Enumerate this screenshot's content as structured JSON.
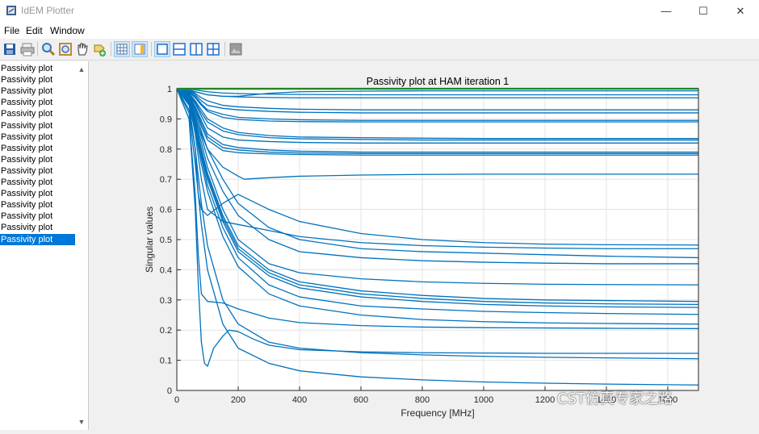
{
  "window": {
    "title": "IdEM Plotter",
    "minimize": "—",
    "maximize": "☐",
    "close": "✕"
  },
  "menu": [
    "File",
    "Edit",
    "Window"
  ],
  "toolbar": {
    "buttons": [
      "save-icon",
      "print-icon",
      "zoom-icon",
      "zoom-fit-icon",
      "pan-hand-icon",
      "data-cursor-icon",
      "grid-icon",
      "legend-icon",
      "layout-single-icon",
      "layout-rows-icon",
      "layout-cols-icon",
      "layout-quad-icon",
      "export-image-icon"
    ]
  },
  "list": {
    "items": [
      "Passivity plot",
      "Passivity plot",
      "Passivity plot",
      "Passivity plot",
      "Passivity plot",
      "Passivity plot",
      "Passivity plot",
      "Passivity plot",
      "Passivity plot",
      "Passivity plot",
      "Passivity plot",
      "Passivity plot",
      "Passivity plot",
      "Passivity plot",
      "Passivity plot",
      "Passivity plot"
    ],
    "selected_index": 15
  },
  "chart_data": {
    "type": "line",
    "title": "Passivity plot at HAM iteration 1",
    "xlabel": "Frequency [MHz]",
    "ylabel": "Singular values",
    "xlim": [
      0,
      1700
    ],
    "ylim": [
      0,
      1
    ],
    "xticks": [
      "0",
      "200",
      "400",
      "600",
      "800",
      "1000",
      "1200",
      "1400",
      "1600"
    ],
    "yticks": [
      "0",
      "0.1",
      "0.2",
      "0.3",
      "0.4",
      "0.5",
      "0.6",
      "0.7",
      "0.8",
      "0.9",
      "1"
    ],
    "grid": true,
    "series_color": "#0072bd",
    "threshold_color": "#1fe01f",
    "threshold": {
      "x": [
        0,
        1700
      ],
      "y": [
        1,
        1
      ]
    },
    "series": [
      {
        "x": [
          0,
          40,
          60,
          80,
          100,
          150,
          200,
          300,
          400,
          600,
          800,
          1000,
          1200,
          1400,
          1700
        ],
        "y": [
          1,
          0.999,
          0.996,
          0.993,
          0.99,
          0.986,
          0.984,
          0.982,
          0.981,
          0.98,
          0.98,
          0.98,
          0.98,
          0.98,
          0.98
        ]
      },
      {
        "x": [
          0,
          40,
          60,
          80,
          100,
          150,
          200,
          300,
          400,
          600,
          800,
          1000,
          1200,
          1400,
          1700
        ],
        "y": [
          1,
          0.997,
          0.99,
          0.985,
          0.98,
          0.975,
          0.973,
          0.971,
          0.97,
          0.97,
          0.97,
          0.97,
          0.97,
          0.97,
          0.97
        ]
      },
      {
        "x": [
          0,
          40,
          60,
          80,
          100,
          150,
          200,
          300,
          400,
          600,
          800,
          1000,
          1200,
          1400,
          1700
        ],
        "y": [
          1,
          0.995,
          0.985,
          0.97,
          0.96,
          0.945,
          0.94,
          0.935,
          0.932,
          0.93,
          0.93,
          0.93,
          0.93,
          0.93,
          0.93
        ]
      },
      {
        "x": [
          0,
          40,
          60,
          80,
          100,
          150,
          200,
          300,
          400,
          600,
          800,
          1000,
          1200,
          1400,
          1700
        ],
        "y": [
          1,
          0.993,
          0.98,
          0.96,
          0.945,
          0.935,
          0.93,
          0.925,
          0.922,
          0.92,
          0.92,
          0.92,
          0.92,
          0.92,
          0.92
        ]
      },
      {
        "x": [
          0,
          40,
          60,
          80,
          100,
          150,
          200,
          300,
          400,
          600,
          800,
          1000,
          1200,
          1400,
          1700
        ],
        "y": [
          1,
          0.99,
          0.975,
          0.95,
          0.93,
          0.915,
          0.905,
          0.9,
          0.897,
          0.895,
          0.895,
          0.895,
          0.895,
          0.895,
          0.895
        ]
      },
      {
        "x": [
          0,
          40,
          60,
          80,
          100,
          150,
          200,
          300,
          400,
          600,
          800,
          1000,
          1200,
          1400,
          1700
        ],
        "y": [
          1,
          0.988,
          0.97,
          0.945,
          0.925,
          0.905,
          0.898,
          0.893,
          0.891,
          0.89,
          0.89,
          0.89,
          0.89,
          0.89,
          0.89
        ]
      },
      {
        "x": [
          0,
          40,
          60,
          80,
          100,
          150,
          200,
          300,
          400,
          600,
          800,
          1000,
          1200,
          1400,
          1700
        ],
        "y": [
          1,
          0.985,
          0.96,
          0.93,
          0.9,
          0.87,
          0.855,
          0.845,
          0.84,
          0.838,
          0.836,
          0.835,
          0.835,
          0.835,
          0.835
        ]
      },
      {
        "x": [
          0,
          40,
          60,
          80,
          100,
          150,
          200,
          300,
          400,
          600,
          800,
          1000,
          1200,
          1400,
          1700
        ],
        "y": [
          1,
          0.983,
          0.955,
          0.92,
          0.89,
          0.86,
          0.848,
          0.838,
          0.834,
          0.832,
          0.83,
          0.83,
          0.83,
          0.83,
          0.83
        ]
      },
      {
        "x": [
          0,
          40,
          60,
          80,
          100,
          150,
          200,
          300,
          400,
          600,
          800,
          1000,
          1200,
          1400,
          1700
        ],
        "y": [
          1,
          0.98,
          0.95,
          0.91,
          0.87,
          0.84,
          0.83,
          0.825,
          0.822,
          0.82,
          0.82,
          0.82,
          0.82,
          0.82,
          0.82
        ]
      },
      {
        "x": [
          0,
          40,
          60,
          80,
          100,
          150,
          200,
          300,
          400,
          600,
          800,
          1000,
          1200,
          1400,
          1700
        ],
        "y": [
          1,
          0.978,
          0.94,
          0.895,
          0.85,
          0.815,
          0.805,
          0.797,
          0.793,
          0.79,
          0.79,
          0.79,
          0.79,
          0.79,
          0.79
        ]
      },
      {
        "x": [
          0,
          40,
          60,
          80,
          100,
          150,
          200,
          300,
          400,
          600,
          800,
          1000,
          1200,
          1400,
          1700
        ],
        "y": [
          1,
          0.975,
          0.935,
          0.885,
          0.84,
          0.805,
          0.797,
          0.79,
          0.787,
          0.785,
          0.785,
          0.785,
          0.785,
          0.785,
          0.785
        ]
      },
      {
        "x": [
          0,
          40,
          60,
          80,
          100,
          150,
          200,
          300,
          400,
          600,
          800,
          1000,
          1200,
          1400,
          1700
        ],
        "y": [
          1,
          0.972,
          0.93,
          0.875,
          0.83,
          0.795,
          0.788,
          0.784,
          0.782,
          0.78,
          0.78,
          0.78,
          0.78,
          0.78,
          0.78
        ]
      },
      {
        "x": [
          0,
          40,
          60,
          80,
          100,
          150,
          200,
          220,
          250,
          300,
          400,
          600,
          800,
          1000,
          1200,
          1400,
          1700
        ],
        "y": [
          1,
          0.97,
          0.9,
          0.85,
          0.8,
          0.74,
          0.71,
          0.7,
          0.702,
          0.705,
          0.71,
          0.714,
          0.716,
          0.717,
          0.717,
          0.717,
          0.717
        ]
      },
      {
        "x": [
          0,
          40,
          60,
          70,
          80,
          100,
          150,
          200,
          300,
          400,
          600,
          800,
          1000,
          1200,
          1400,
          1700
        ],
        "y": [
          1,
          0.95,
          0.8,
          0.65,
          0.6,
          0.58,
          0.62,
          0.65,
          0.6,
          0.56,
          0.52,
          0.5,
          0.49,
          0.485,
          0.483,
          0.482
        ]
      },
      {
        "x": [
          0,
          40,
          60,
          80,
          100,
          150,
          200,
          300,
          400,
          600,
          800,
          1000,
          1200,
          1400,
          1700
        ],
        "y": [
          1,
          0.96,
          0.85,
          0.7,
          0.6,
          0.56,
          0.55,
          0.53,
          0.51,
          0.49,
          0.48,
          0.475,
          0.472,
          0.47,
          0.47
        ]
      },
      {
        "x": [
          0,
          40,
          60,
          80,
          100,
          150,
          200,
          300,
          400,
          600,
          800,
          1000,
          1200,
          1400,
          1700
        ],
        "y": [
          1,
          0.97,
          0.92,
          0.86,
          0.8,
          0.7,
          0.62,
          0.54,
          0.5,
          0.47,
          0.46,
          0.455,
          0.45,
          0.445,
          0.44
        ]
      },
      {
        "x": [
          0,
          40,
          60,
          80,
          100,
          150,
          200,
          300,
          400,
          600,
          800,
          1000,
          1200,
          1400,
          1700
        ],
        "y": [
          1,
          0.97,
          0.91,
          0.84,
          0.77,
          0.66,
          0.58,
          0.5,
          0.46,
          0.44,
          0.43,
          0.425,
          0.422,
          0.42,
          0.42
        ]
      },
      {
        "x": [
          0,
          40,
          60,
          80,
          100,
          150,
          200,
          300,
          400,
          600,
          800,
          1000,
          1200,
          1400,
          1700
        ],
        "y": [
          1,
          0.965,
          0.9,
          0.82,
          0.74,
          0.6,
          0.5,
          0.42,
          0.39,
          0.37,
          0.36,
          0.355,
          0.352,
          0.351,
          0.35
        ]
      },
      {
        "x": [
          0,
          40,
          60,
          80,
          100,
          150,
          200,
          300,
          400,
          600,
          800,
          1000,
          1200,
          1400,
          1700
        ],
        "y": [
          1,
          0.96,
          0.89,
          0.8,
          0.72,
          0.58,
          0.48,
          0.4,
          0.36,
          0.33,
          0.315,
          0.305,
          0.3,
          0.298,
          0.295
        ]
      },
      {
        "x": [
          0,
          40,
          60,
          80,
          100,
          150,
          200,
          300,
          400,
          600,
          800,
          1000,
          1200,
          1400,
          1700
        ],
        "y": [
          1,
          0.958,
          0.885,
          0.79,
          0.71,
          0.57,
          0.47,
          0.39,
          0.35,
          0.32,
          0.305,
          0.295,
          0.29,
          0.287,
          0.285
        ]
      },
      {
        "x": [
          0,
          40,
          60,
          80,
          100,
          150,
          200,
          300,
          400,
          600,
          800,
          1000,
          1200,
          1400,
          1700
        ],
        "y": [
          1,
          0.955,
          0.88,
          0.78,
          0.7,
          0.56,
          0.46,
          0.38,
          0.34,
          0.31,
          0.295,
          0.285,
          0.28,
          0.277,
          0.275
        ]
      },
      {
        "x": [
          0,
          40,
          60,
          80,
          100,
          150,
          200,
          300,
          400,
          600,
          800,
          1000,
          1200,
          1400,
          1700
        ],
        "y": [
          1,
          0.95,
          0.87,
          0.77,
          0.68,
          0.54,
          0.44,
          0.35,
          0.31,
          0.28,
          0.27,
          0.262,
          0.258,
          0.255,
          0.252
        ]
      },
      {
        "x": [
          0,
          40,
          60,
          80,
          100,
          150,
          200,
          300,
          400,
          600,
          800,
          1000,
          1200,
          1400,
          1700
        ],
        "y": [
          1,
          0.945,
          0.86,
          0.75,
          0.66,
          0.51,
          0.41,
          0.32,
          0.28,
          0.25,
          0.235,
          0.228,
          0.224,
          0.222,
          0.22
        ]
      },
      {
        "x": [
          0,
          40,
          60,
          70,
          80,
          100,
          150,
          200,
          300,
          400,
          600,
          800,
          1000,
          1200,
          1400,
          1700
        ],
        "y": [
          1,
          0.9,
          0.65,
          0.45,
          0.32,
          0.295,
          0.29,
          0.27,
          0.24,
          0.225,
          0.215,
          0.21,
          0.208,
          0.207,
          0.206,
          0.205
        ]
      },
      {
        "x": [
          0,
          40,
          60,
          70,
          80,
          90,
          100,
          120,
          150,
          170,
          200,
          250,
          300,
          400,
          600,
          800,
          1000,
          1200,
          1400,
          1700
        ],
        "y": [
          1,
          0.9,
          0.6,
          0.35,
          0.16,
          0.09,
          0.08,
          0.14,
          0.18,
          0.2,
          0.195,
          0.17,
          0.15,
          0.135,
          0.128,
          0.125,
          0.124,
          0.123,
          0.123,
          0.123
        ]
      },
      {
        "x": [
          0,
          40,
          60,
          80,
          100,
          150,
          200,
          300,
          400,
          600,
          800,
          1000,
          1200,
          1400,
          1700
        ],
        "y": [
          1,
          0.93,
          0.8,
          0.62,
          0.48,
          0.3,
          0.22,
          0.16,
          0.14,
          0.125,
          0.118,
          0.113,
          0.11,
          0.108,
          0.105
        ]
      },
      {
        "x": [
          0,
          40,
          60,
          80,
          100,
          150,
          200,
          300,
          400,
          600,
          800,
          1000,
          1200,
          1400,
          1700
        ],
        "y": [
          1,
          0.92,
          0.75,
          0.55,
          0.4,
          0.22,
          0.14,
          0.09,
          0.065,
          0.045,
          0.035,
          0.028,
          0.024,
          0.021,
          0.018
        ]
      },
      {
        "x": [
          0,
          60,
          100,
          150,
          200,
          250,
          300,
          400,
          600,
          800,
          1000,
          1200,
          1400,
          1700
        ],
        "y": [
          1,
          0.99,
          0.98,
          0.975,
          0.975,
          0.98,
          0.985,
          0.99,
          0.992,
          0.993,
          0.993,
          0.993,
          0.993,
          0.993
        ]
      }
    ]
  },
  "watermark": "CST仿真专家之路"
}
